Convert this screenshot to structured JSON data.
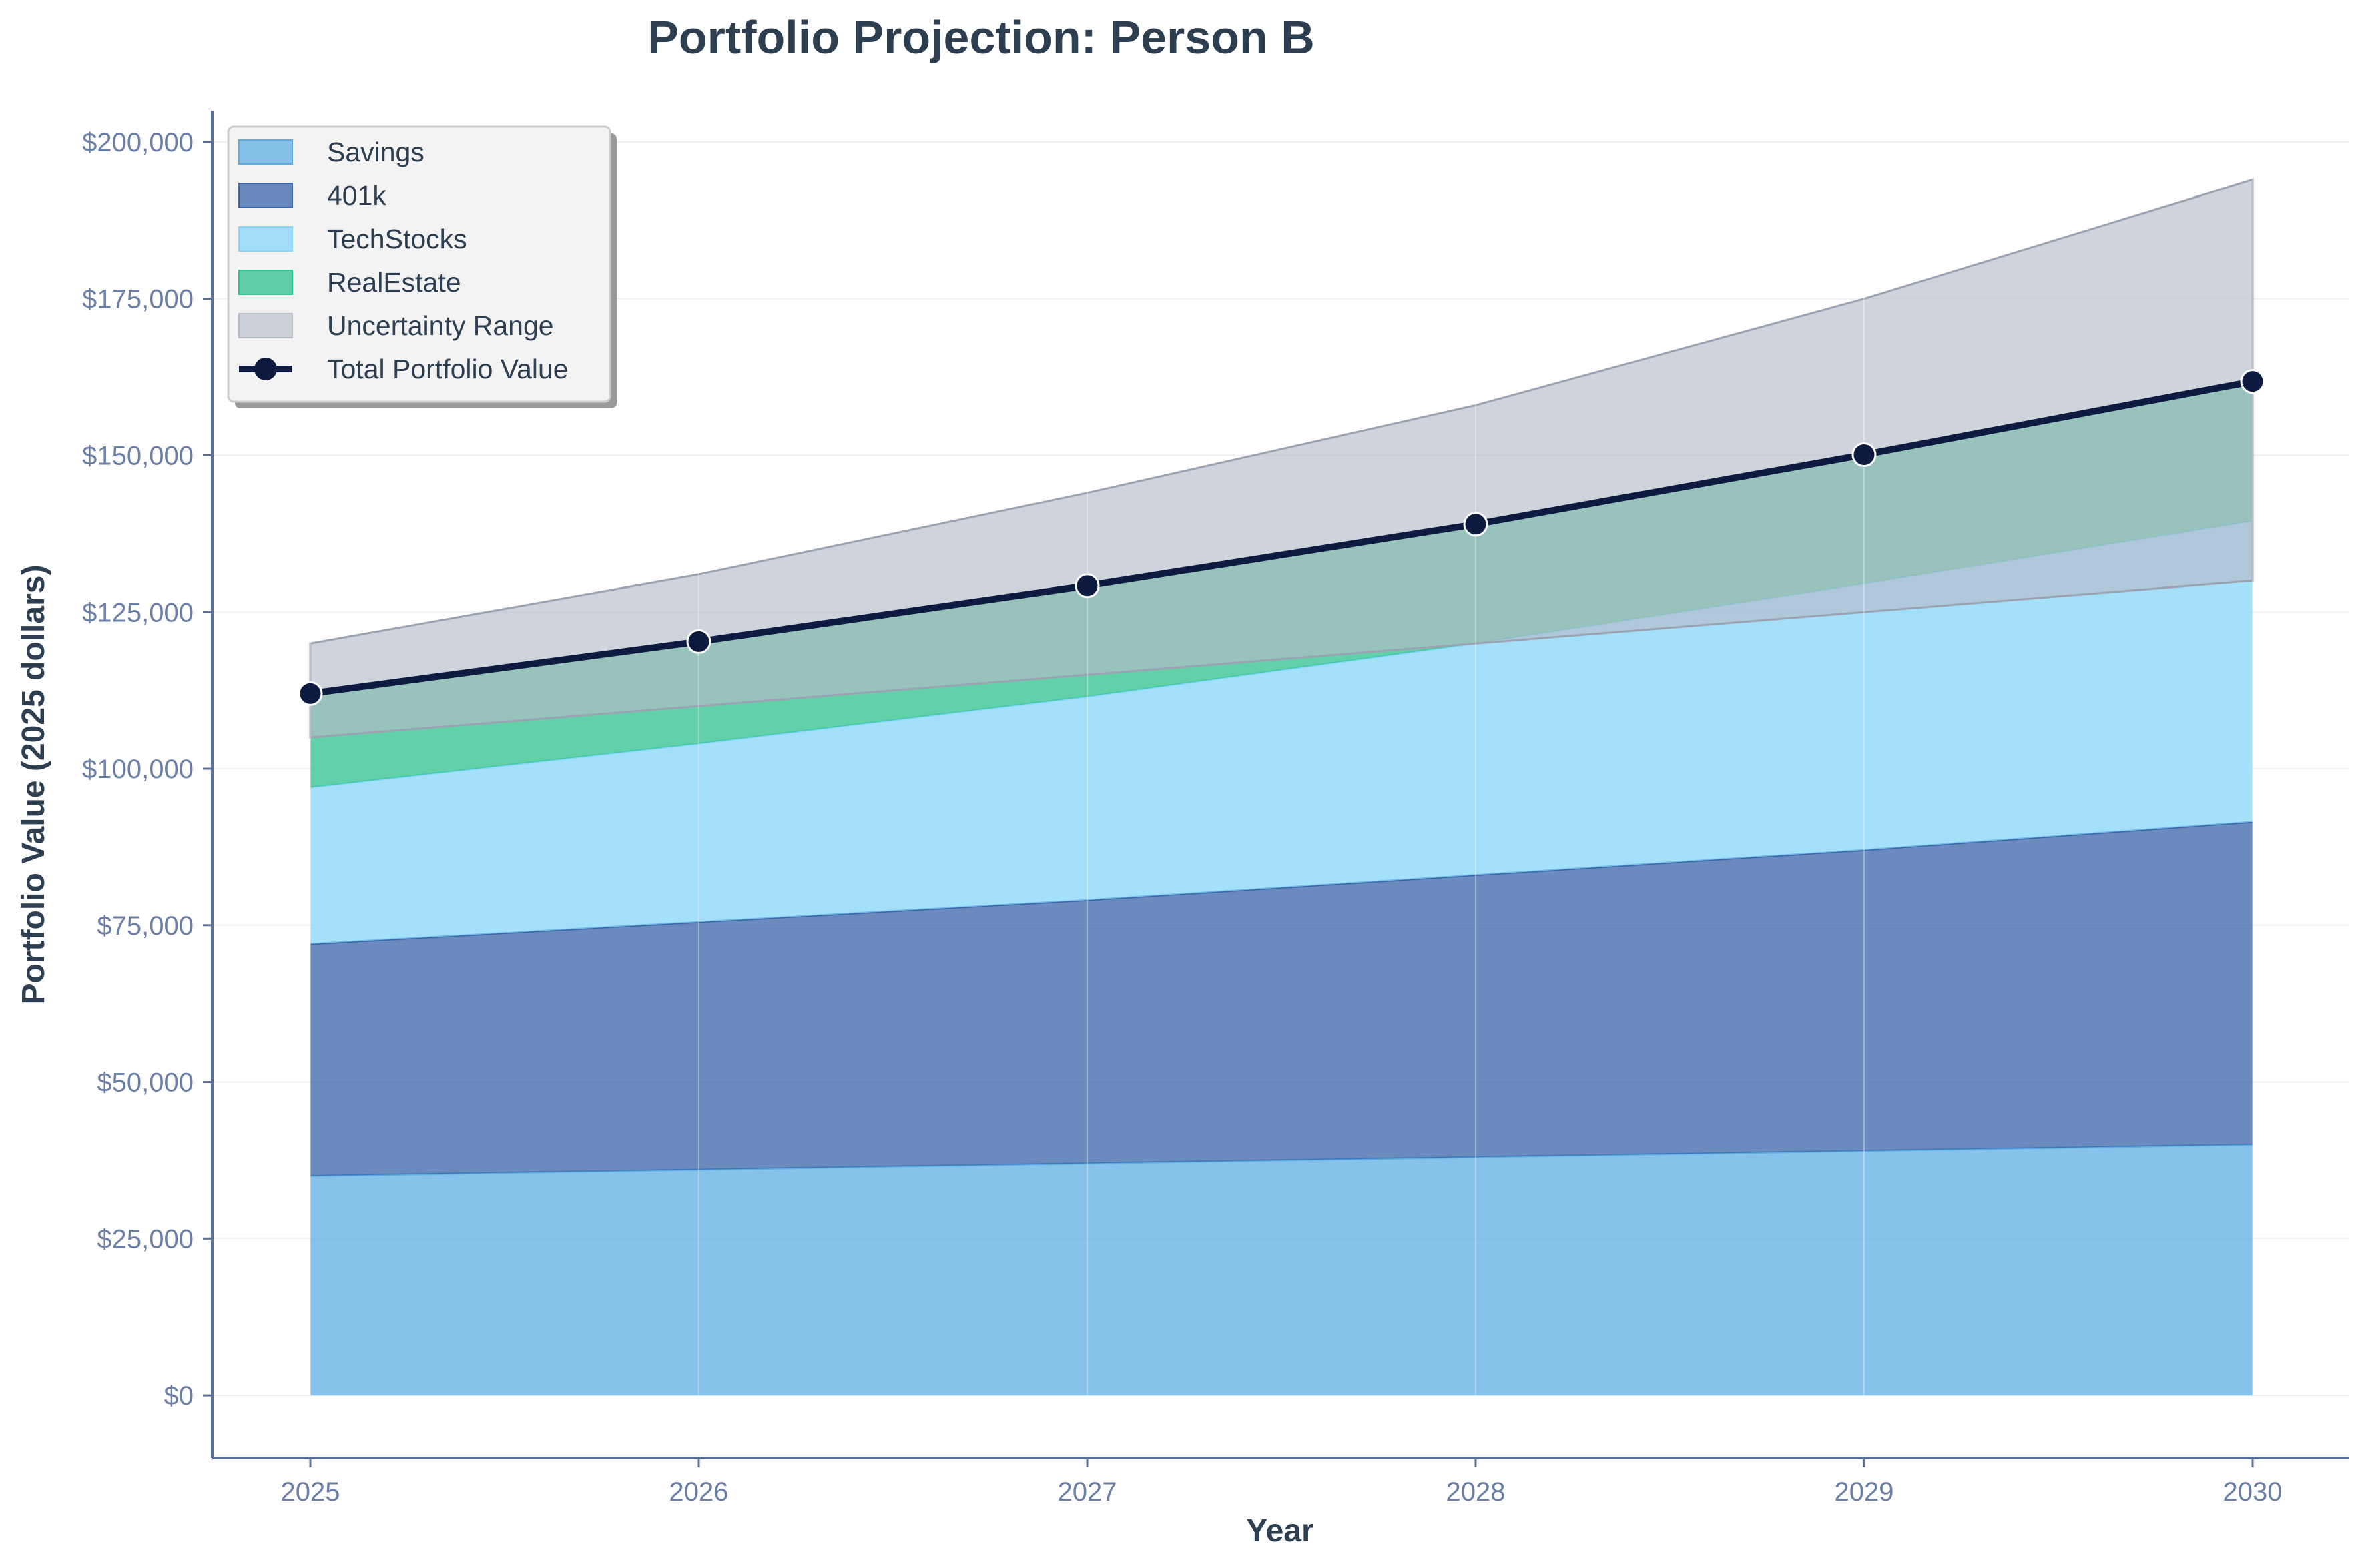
{
  "chart_data": {
    "type": "area",
    "title": "Portfolio Projection: Person B",
    "xlabel": "Year",
    "ylabel": "Portfolio Value (2025 dollars)",
    "x": [
      2025,
      2026,
      2027,
      2028,
      2029,
      2030
    ],
    "x_tick_labels": [
      "2025",
      "2026",
      "2027",
      "2028",
      "2029",
      "2030"
    ],
    "ylim": [
      -10000,
      205000
    ],
    "y_ticks": [
      0,
      25000,
      50000,
      75000,
      100000,
      125000,
      150000,
      175000,
      200000
    ],
    "y_tick_labels": [
      "$0",
      "$25,000",
      "$50,000",
      "$75,000",
      "$100,000",
      "$125,000",
      "$150,000",
      "$175,000",
      "$200,000"
    ],
    "grid": true,
    "legend_position": "top-left",
    "series": [
      {
        "name": "Savings",
        "values": [
          35000,
          36000,
          37000,
          38000,
          39000,
          40000
        ],
        "color": "#5dade2"
      },
      {
        "name": "401k",
        "values": [
          37000,
          39500,
          42000,
          45000,
          48000,
          51500
        ],
        "color": "#3a64a8"
      },
      {
        "name": "TechStocks",
        "values": [
          25000,
          28500,
          32500,
          37000,
          42500,
          48000
        ],
        "color": "#87d6fa"
      },
      {
        "name": "RealEstate",
        "values": [
          15000,
          16300,
          17700,
          19000,
          20600,
          22300
        ],
        "color": "#2ec28c"
      }
    ],
    "uncertainty_range": {
      "name": "Uncertainty Range",
      "lower": [
        105000,
        110000,
        115000,
        120000,
        125000,
        130000
      ],
      "upper": [
        120000,
        131000,
        144000,
        158000,
        175000,
        194000
      ],
      "color": "#b5bcc7"
    },
    "total": {
      "name": "Total Portfolio Value",
      "values": [
        112000,
        120300,
        129200,
        139000,
        150100,
        161800
      ],
      "color": "#0d1b40"
    }
  }
}
